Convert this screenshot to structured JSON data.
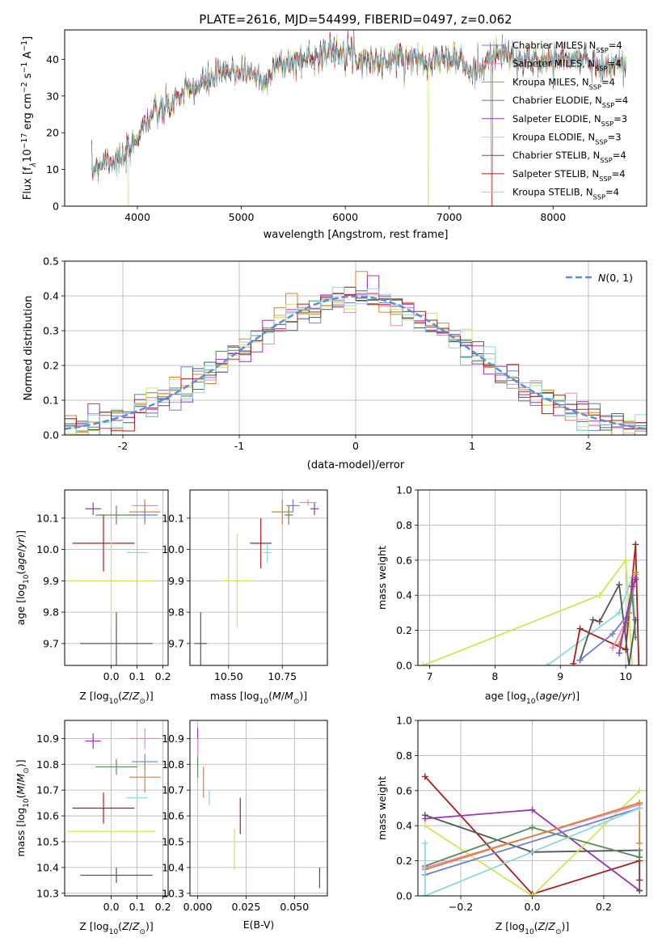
{
  "figure": {
    "title": "PLATE=2616, MJD=54499, FIBERID=0497, z=0.062"
  },
  "colors": {
    "chabrier_miles": "#6f7fd8",
    "salpeter_miles": "#e98bbd",
    "kroupa_miles": "#e07f2e",
    "chabrier_elodie": "#5b8a5b",
    "salpeter_elodie": "#9a33b5",
    "kroupa_elodie": "#d0e65a",
    "chabrier_stelib": "#555555",
    "salpeter_stelib": "#a81f1f",
    "kroupa_stelib": "#8bd9dc",
    "normal_curve": "#5b8ed6",
    "grid": "#b0b0b0"
  },
  "chart_data": [
    {
      "id": "spectrum",
      "type": "line",
      "xlabel": "wavelength [Angstrom, rest frame]",
      "ylabel": "Flux [f",
      "ylabel_rest": "10",
      "ylabel_tail": " erg cm",
      "ylabel_tail2": " s",
      "ylabel_tail3": " A",
      "xlim": [
        3300,
        8900
      ],
      "ylim": [
        0,
        48
      ],
      "xticks": [
        4000,
        5000,
        6000,
        7000,
        8000
      ],
      "yticks": [
        0,
        10,
        20,
        30,
        40
      ],
      "grid": false,
      "legend_position": "top-right",
      "continuum_x": [
        3560,
        3700,
        3850,
        3950,
        4050,
        4150,
        4300,
        4400,
        4600,
        4800,
        5000,
        5150,
        5200,
        5300,
        5500,
        5700,
        5900,
        6000,
        6150,
        6400,
        6560,
        6600,
        6900,
        7100,
        7200,
        7300,
        7400,
        7500,
        7700,
        7900,
        8100,
        8300,
        8500,
        8700
      ],
      "continuum_y": [
        10,
        13,
        12,
        16,
        22,
        25,
        27,
        30,
        33,
        36,
        37,
        36,
        33,
        38,
        39,
        41,
        42,
        43,
        40,
        39,
        41,
        40,
        40,
        40,
        36,
        38,
        40,
        42,
        39,
        40,
        40,
        40,
        38,
        39
      ],
      "series": [
        {
          "name": "Chabrier MILES",
          "nssp": "4",
          "color_key": "chabrier_miles"
        },
        {
          "name": "Salpeter MILES",
          "nssp": "4",
          "color_key": "salpeter_miles"
        },
        {
          "name": "Kroupa MILES",
          "nssp": "4",
          "color_key": "kroupa_miles"
        },
        {
          "name": "Chabrier ELODIE",
          "nssp": "4",
          "color_key": "chabrier_elodie"
        },
        {
          "name": "Salpeter ELODIE",
          "nssp": "3",
          "color_key": "salpeter_elodie"
        },
        {
          "name": "Kroupa ELODIE",
          "nssp": "3",
          "color_key": "kroupa_elodie"
        },
        {
          "name": "Chabrier STELIB",
          "nssp": "4",
          "color_key": "chabrier_stelib"
        },
        {
          "name": "Salpeter STELIB",
          "nssp": "4",
          "color_key": "salpeter_stelib"
        },
        {
          "name": "Kroupa STELIB",
          "nssp": "4",
          "color_key": "kroupa_stelib"
        }
      ],
      "dropouts": [
        {
          "x": 3910,
          "color_key": "kroupa_elodie"
        },
        {
          "x": 6800,
          "color_key": "kroupa_elodie"
        },
        {
          "x": 7410,
          "color_key": "salpeter_stelib"
        }
      ]
    },
    {
      "id": "residuals",
      "type": "line",
      "xlabel": "(data-model)/error",
      "ylabel": "Normed distribution",
      "xlim": [
        -2.5,
        2.5
      ],
      "ylim": [
        0,
        0.5
      ],
      "xticks": [
        -2,
        -1,
        0,
        1,
        2
      ],
      "yticks": [
        0.0,
        0.1,
        0.2,
        0.3,
        0.4,
        0.5
      ],
      "grid": true,
      "legend_position": "top-right",
      "legend_label": "N(0,1)",
      "bin_width": 0.1,
      "bin_start": -2.5,
      "histogram_series_keys": [
        "chabrier_miles",
        "salpeter_miles",
        "kroupa_miles",
        "chabrier_elodie",
        "salpeter_elodie",
        "kroupa_elodie",
        "chabrier_stelib",
        "salpeter_stelib",
        "kroupa_stelib"
      ]
    },
    {
      "id": "age_vs_Z",
      "type": "scatter",
      "xlabel": "Z [log",
      "ylabel": "age  [log",
      "xlim": [
        -0.18,
        0.22
      ],
      "ylim": [
        9.63,
        10.19
      ],
      "xticks": [
        -0.2,
        0.0,
        0.1,
        0.2
      ],
      "xtick_labels": [
        "",
        "0.0",
        "0.1",
        "0.2"
      ],
      "yticks": [
        9.7,
        9.8,
        9.9,
        10.0,
        10.1
      ],
      "grid": true,
      "points": [
        {
          "x": -0.07,
          "y": 10.13,
          "xerr": 0.03,
          "yerr": 0.02,
          "color_key": "salpeter_elodie"
        },
        {
          "x": 0.02,
          "y": 10.11,
          "xerr": 0.08,
          "yerr": 0.03,
          "color_key": "chabrier_elodie"
        },
        {
          "x": 0.13,
          "y": 10.14,
          "xerr": 0.05,
          "yerr": 0.01,
          "color_key": "salpeter_miles"
        },
        {
          "x": 0.13,
          "y": 10.12,
          "xerr": 0.06,
          "yerr": 0.04,
          "color_key": "kroupa_miles"
        },
        {
          "x": 0.13,
          "y": 10.11,
          "xerr": 0.05,
          "yerr": 0.02,
          "color_key": "chabrier_miles"
        },
        {
          "x": -0.03,
          "y": 10.02,
          "xerr": 0.12,
          "yerr": 0.09,
          "color_key": "salpeter_stelib"
        },
        {
          "x": 0.1,
          "y": 9.99,
          "xerr": 0.04,
          "yerr": 0.03,
          "color_key": "kroupa_stelib"
        },
        {
          "x": 0.0,
          "y": 9.9,
          "xerr": 0.17,
          "yerr": 0.15,
          "color_key": "kroupa_elodie"
        },
        {
          "x": 0.02,
          "y": 9.7,
          "xerr": 0.14,
          "yerr": 0.1,
          "color_key": "chabrier_stelib"
        }
      ]
    },
    {
      "id": "age_vs_mass",
      "type": "scatter",
      "xlabel": "mass [log",
      "xlim": [
        10.32,
        10.96
      ],
      "ylim": [
        9.63,
        10.19
      ],
      "xticks": [
        10.5,
        10.75
      ],
      "xtick_labels": [
        "10.50",
        "10.75"
      ],
      "yticks": [
        9.7,
        9.8,
        9.9,
        10.0,
        10.1
      ],
      "grid": true,
      "points": [
        {
          "x": 10.9,
          "y": 10.13,
          "xerr": 0.02,
          "yerr": 0.02,
          "color_key": "salpeter_elodie"
        },
        {
          "x": 10.87,
          "y": 10.15,
          "xerr": 0.04,
          "yerr": 0.01,
          "color_key": "salpeter_miles"
        },
        {
          "x": 10.8,
          "y": 10.14,
          "xerr": 0.03,
          "yerr": 0.02,
          "color_key": "chabrier_miles"
        },
        {
          "x": 10.78,
          "y": 10.11,
          "xerr": 0.02,
          "yerr": 0.03,
          "color_key": "chabrier_elodie"
        },
        {
          "x": 10.75,
          "y": 10.12,
          "xerr": 0.05,
          "yerr": 0.04,
          "color_key": "kroupa_miles"
        },
        {
          "x": 10.65,
          "y": 10.02,
          "xerr": 0.05,
          "yerr": 0.08,
          "color_key": "salpeter_stelib"
        },
        {
          "x": 10.68,
          "y": 9.99,
          "xerr": 0.02,
          "yerr": 0.03,
          "color_key": "kroupa_stelib"
        },
        {
          "x": 10.54,
          "y": 9.9,
          "xerr": 0.07,
          "yerr": 0.15,
          "color_key": "kroupa_elodie"
        },
        {
          "x": 10.37,
          "y": 9.7,
          "xerr": 0.03,
          "yerr": 0.1,
          "color_key": "chabrier_stelib"
        }
      ]
    },
    {
      "id": "mass_weight_vs_age",
      "type": "line",
      "xlabel": "age  [log",
      "ylabel": "mass weight",
      "xlim": [
        6.82,
        10.32
      ],
      "ylim": [
        0,
        1
      ],
      "xticks": [
        7,
        8,
        9,
        10
      ],
      "yticks": [
        0.0,
        0.2,
        0.4,
        0.6,
        0.8,
        1.0
      ],
      "grid": true,
      "series": [
        {
          "color_key": "kroupa_elodie",
          "x": [
            6.9,
            9.6,
            10.0,
            10.1
          ],
          "y": [
            0.0,
            0.4,
            0.6,
            0.0
          ]
        },
        {
          "color_key": "kroupa_stelib",
          "x": [
            8.8,
            9.9,
            10.1,
            10.15
          ],
          "y": [
            0.0,
            0.3,
            0.5,
            0.2
          ]
        },
        {
          "color_key": "salpeter_stelib",
          "x": [
            9.2,
            9.3,
            10.0,
            10.15,
            10.2
          ],
          "y": [
            0.01,
            0.21,
            0.09,
            0.69,
            0.0
          ]
        },
        {
          "color_key": "chabrier_stelib",
          "x": [
            9.3,
            9.5,
            9.6,
            9.9,
            10.05,
            10.15
          ],
          "y": [
            0.03,
            0.26,
            0.25,
            0.46,
            0.0,
            0.26
          ]
        },
        {
          "color_key": "chabrier_miles",
          "x": [
            9.3,
            9.8,
            10.05,
            10.15
          ],
          "y": [
            0.03,
            0.18,
            0.3,
            0.5
          ]
        },
        {
          "color_key": "salpeter_miles",
          "x": [
            9.8,
            10.0,
            10.15
          ],
          "y": [
            0.1,
            0.25,
            0.52
          ]
        },
        {
          "color_key": "kroupa_miles",
          "x": [
            9.9,
            10.05,
            10.15
          ],
          "y": [
            0.12,
            0.3,
            0.53
          ]
        },
        {
          "color_key": "salpeter_elodie",
          "x": [
            9.9,
            10.1,
            10.15
          ],
          "y": [
            0.07,
            0.45,
            0.49
          ]
        },
        {
          "color_key": "chabrier_elodie",
          "x": [
            10.0,
            10.1,
            10.15
          ],
          "y": [
            0.22,
            0.4,
            0.16
          ]
        }
      ]
    },
    {
      "id": "mass_vs_Z",
      "type": "scatter",
      "xlabel": "Z [log",
      "ylabel": "mass [log",
      "xlim": [
        -0.18,
        0.22
      ],
      "ylim": [
        10.29,
        10.97
      ],
      "xticks": [
        -0.2,
        0.0,
        0.1,
        0.2
      ],
      "xtick_labels": [
        "",
        "0.0",
        "0.1",
        "0.2"
      ],
      "yticks": [
        10.3,
        10.4,
        10.5,
        10.6,
        10.7,
        10.8,
        10.9
      ],
      "grid": true,
      "points": [
        {
          "x": -0.07,
          "y": 10.89,
          "xerr": 0.03,
          "yerr": 0.03,
          "color_key": "salpeter_elodie"
        },
        {
          "x": 0.13,
          "y": 10.9,
          "xerr": 0.06,
          "yerr": 0.04,
          "color_key": "salpeter_miles"
        },
        {
          "x": 0.13,
          "y": 10.81,
          "xerr": 0.05,
          "yerr": 0.03,
          "color_key": "chabrier_miles"
        },
        {
          "x": 0.02,
          "y": 10.79,
          "xerr": 0.08,
          "yerr": 0.03,
          "color_key": "chabrier_elodie"
        },
        {
          "x": 0.13,
          "y": 10.75,
          "xerr": 0.06,
          "yerr": 0.06,
          "color_key": "kroupa_miles"
        },
        {
          "x": 0.1,
          "y": 10.67,
          "xerr": 0.04,
          "yerr": 0.03,
          "color_key": "kroupa_stelib"
        },
        {
          "x": -0.03,
          "y": 10.63,
          "xerr": 0.12,
          "yerr": 0.06,
          "color_key": "salpeter_stelib"
        },
        {
          "x": 0.0,
          "y": 10.54,
          "xerr": 0.17,
          "yerr": 0.08,
          "color_key": "kroupa_elodie"
        },
        {
          "x": 0.02,
          "y": 10.37,
          "xerr": 0.14,
          "yerr": 0.03,
          "color_key": "chabrier_stelib"
        }
      ]
    },
    {
      "id": "mass_vs_ebv",
      "type": "scatter",
      "xlabel": "E(B-V)",
      "xlim": [
        -0.004,
        0.067
      ],
      "ylim": [
        10.29,
        10.97
      ],
      "xticks": [
        0.0,
        0.025,
        0.05
      ],
      "xtick_labels": [
        "0.000",
        "0.025",
        "0.050"
      ],
      "yticks": [
        10.3,
        10.4,
        10.5,
        10.6,
        10.7,
        10.8,
        10.9
      ],
      "grid": true,
      "points": [
        {
          "x": 0.0,
          "y": 10.89,
          "xerr": 0.0,
          "yerr": 0.05,
          "color_key": "salpeter_elodie"
        },
        {
          "x": 0.0,
          "y": 10.86,
          "xerr": 0.0,
          "yerr": 0.04,
          "color_key": "salpeter_miles"
        },
        {
          "x": 0.0,
          "y": 10.79,
          "xerr": 0.0,
          "yerr": 0.04,
          "color_key": "chabrier_elodie"
        },
        {
          "x": 0.003,
          "y": 10.73,
          "xerr": 0.0,
          "yerr": 0.06,
          "color_key": "kroupa_miles"
        },
        {
          "x": 0.006,
          "y": 10.67,
          "xerr": 0.0,
          "yerr": 0.03,
          "color_key": "kroupa_stelib"
        },
        {
          "x": 0.022,
          "y": 10.6,
          "xerr": 0.0,
          "yerr": 0.07,
          "color_key": "salpeter_stelib"
        },
        {
          "x": 0.019,
          "y": 10.47,
          "xerr": 0.0,
          "yerr": 0.08,
          "color_key": "kroupa_elodie"
        },
        {
          "x": 0.063,
          "y": 10.36,
          "xerr": 0.0,
          "yerr": 0.04,
          "color_key": "chabrier_stelib"
        }
      ]
    },
    {
      "id": "mass_weight_vs_Z",
      "type": "line",
      "xlabel": "Z [log",
      "ylabel": "mass weight",
      "xlim": [
        -0.32,
        0.32
      ],
      "ylim": [
        0,
        1
      ],
      "xticks": [
        -0.2,
        0.0,
        0.2
      ],
      "xtick_labels": [
        "−0.2",
        "0.0",
        "0.2"
      ],
      "yticks": [
        0.0,
        0.2,
        0.4,
        0.6,
        0.8,
        1.0
      ],
      "grid": true,
      "series": [
        {
          "color_key": "salpeter_stelib",
          "x": [
            -0.3,
            0.0,
            0.3,
            0.3
          ],
          "y": [
            0.68,
            0.01,
            0.2,
            0.09
          ]
        },
        {
          "color_key": "salpeter_elodie",
          "x": [
            -0.3,
            0.0,
            0.3
          ],
          "y": [
            0.44,
            0.49,
            0.03
          ]
        },
        {
          "color_key": "chabrier_stelib",
          "x": [
            -0.3,
            0.0,
            0.3,
            0.3
          ],
          "y": [
            0.46,
            0.25,
            0.26,
            0.03
          ]
        },
        {
          "color_key": "kroupa_elodie",
          "x": [
            -0.3,
            0.0,
            0.3
          ],
          "y": [
            0.4,
            0.0,
            0.6
          ]
        },
        {
          "color_key": "chabrier_elodie",
          "x": [
            -0.3,
            0.0,
            0.3,
            0.3
          ],
          "y": [
            0.17,
            0.39,
            0.22,
            0.26
          ]
        },
        {
          "color_key": "salpeter_miles",
          "x": [
            -0.3,
            0.3
          ],
          "y": [
            0.16,
            0.52
          ]
        },
        {
          "color_key": "kroupa_miles",
          "x": [
            -0.3,
            0.3,
            0.3
          ],
          "y": [
            0.15,
            0.53,
            0.3
          ]
        },
        {
          "color_key": "chabrier_miles",
          "x": [
            -0.3,
            0.3
          ],
          "y": [
            0.12,
            0.5
          ]
        },
        {
          "color_key": "kroupa_stelib",
          "x": [
            -0.3,
            -0.3,
            0.3
          ],
          "y": [
            0.3,
            0.0,
            0.5
          ]
        }
      ]
    }
  ]
}
